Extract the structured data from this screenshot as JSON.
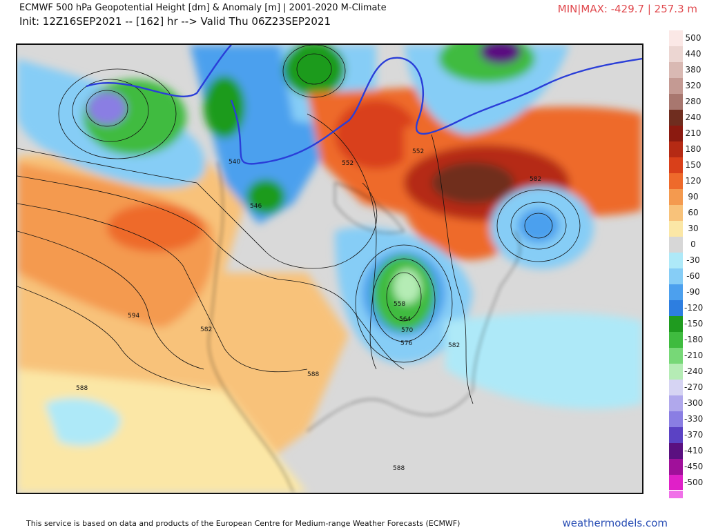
{
  "header": {
    "title": "ECMWF 500 hPa Geopotential Height [dm] & Anomaly [m] | 2001-2020 M-Climate",
    "run_info": "Init: 12Z16SEP2021 -- [162] hr --> Valid Thu 06Z23SEP2021",
    "minmax": "MIN|MAX: -429.7 | 257.3 m"
  },
  "colorbar": {
    "labels": [
      "500",
      "440",
      "380",
      "320",
      "280",
      "240",
      "210",
      "180",
      "150",
      "120",
      "90",
      "60",
      "30",
      "0",
      "-30",
      "-60",
      "-90",
      "-120",
      "-150",
      "-180",
      "-210",
      "-240",
      "-270",
      "-300",
      "-330",
      "-370",
      "-410",
      "-450",
      "-500"
    ],
    "colors": [
      "#fbe8e6",
      "#ecd6d2",
      "#d9b9b3",
      "#c49a93",
      "#a8776f",
      "#6f2d1f",
      "#8b1a10",
      "#b52a14",
      "#d9401a",
      "#ee6a2b",
      "#f49a4f",
      "#f8c27a",
      "#fbe7a6",
      "#d7d7d7",
      "#aee9f8",
      "#86cdf6",
      "#4ca0ee",
      "#2d7ee0",
      "#1f9b1f",
      "#3fbb3f",
      "#77d877",
      "#b5ecb5",
      "#d6d4f3",
      "#b0a8ec",
      "#8a7ee3",
      "#5b42c4",
      "#5a1080",
      "#a0109a",
      "#e020c8"
    ],
    "bottom_color": "#f070e8"
  },
  "map": {
    "contour_labels": [
      "540",
      "546",
      "552",
      "552",
      "564",
      "570",
      "576",
      "558",
      "582",
      "582",
      "582",
      "588",
      "594",
      "588",
      "588"
    ],
    "anomaly_centers": [
      {
        "name": "gulf-of-alaska-low",
        "value": "-240"
      },
      {
        "name": "hudson-region-low",
        "value": "-300"
      },
      {
        "name": "great-lakes-trough",
        "value": "-180"
      },
      {
        "name": "labrador-ridge",
        "value": "+240"
      },
      {
        "name": "atlantic-low",
        "value": "-120"
      }
    ]
  },
  "footer": {
    "attribution": "This service is based on data and products of the European Centre for Medium-range Weather Forecasts (ECMWF)",
    "site": "weathermodels.com"
  }
}
